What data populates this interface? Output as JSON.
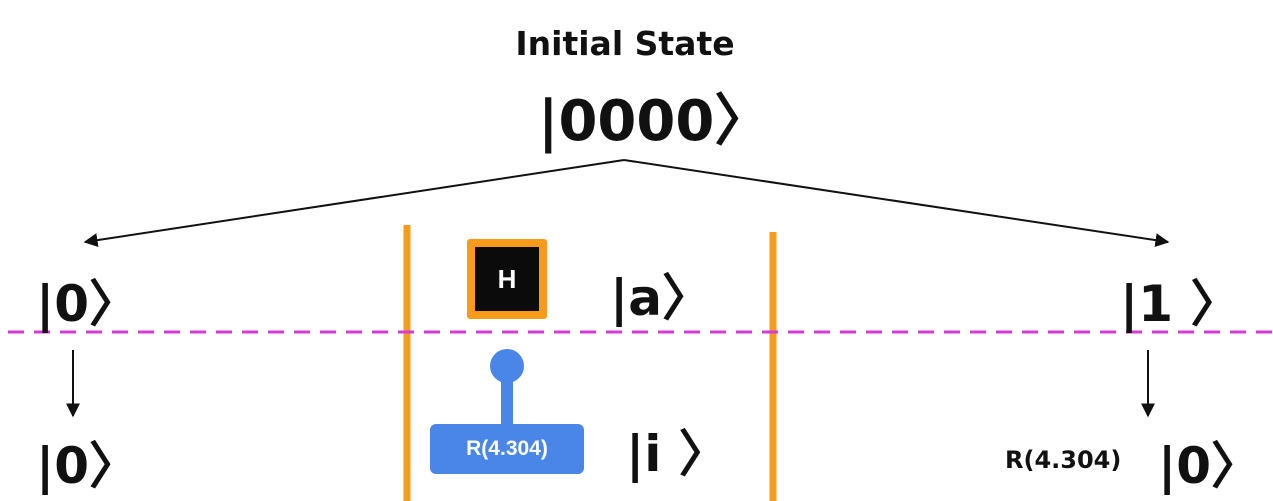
{
  "title": "Initial State",
  "initial_ket": "|0000〉",
  "left_top_ket": "|0〉",
  "middle_top_ket": "|a〉",
  "right_top_ket": "|1 〉",
  "left_bottom_ket": "|0〉",
  "middle_bottom_ket": "|i 〉",
  "right_bottom_ket": "|0〉",
  "h_gate_label": "H",
  "rotation_gate_label": "R(4.304)",
  "right_rotation_label": "R(4.304)",
  "colors": {
    "orange": "#f99b1a",
    "blue": "#4a86e8",
    "magenta": "#d63ad6",
    "black": "#111111"
  }
}
